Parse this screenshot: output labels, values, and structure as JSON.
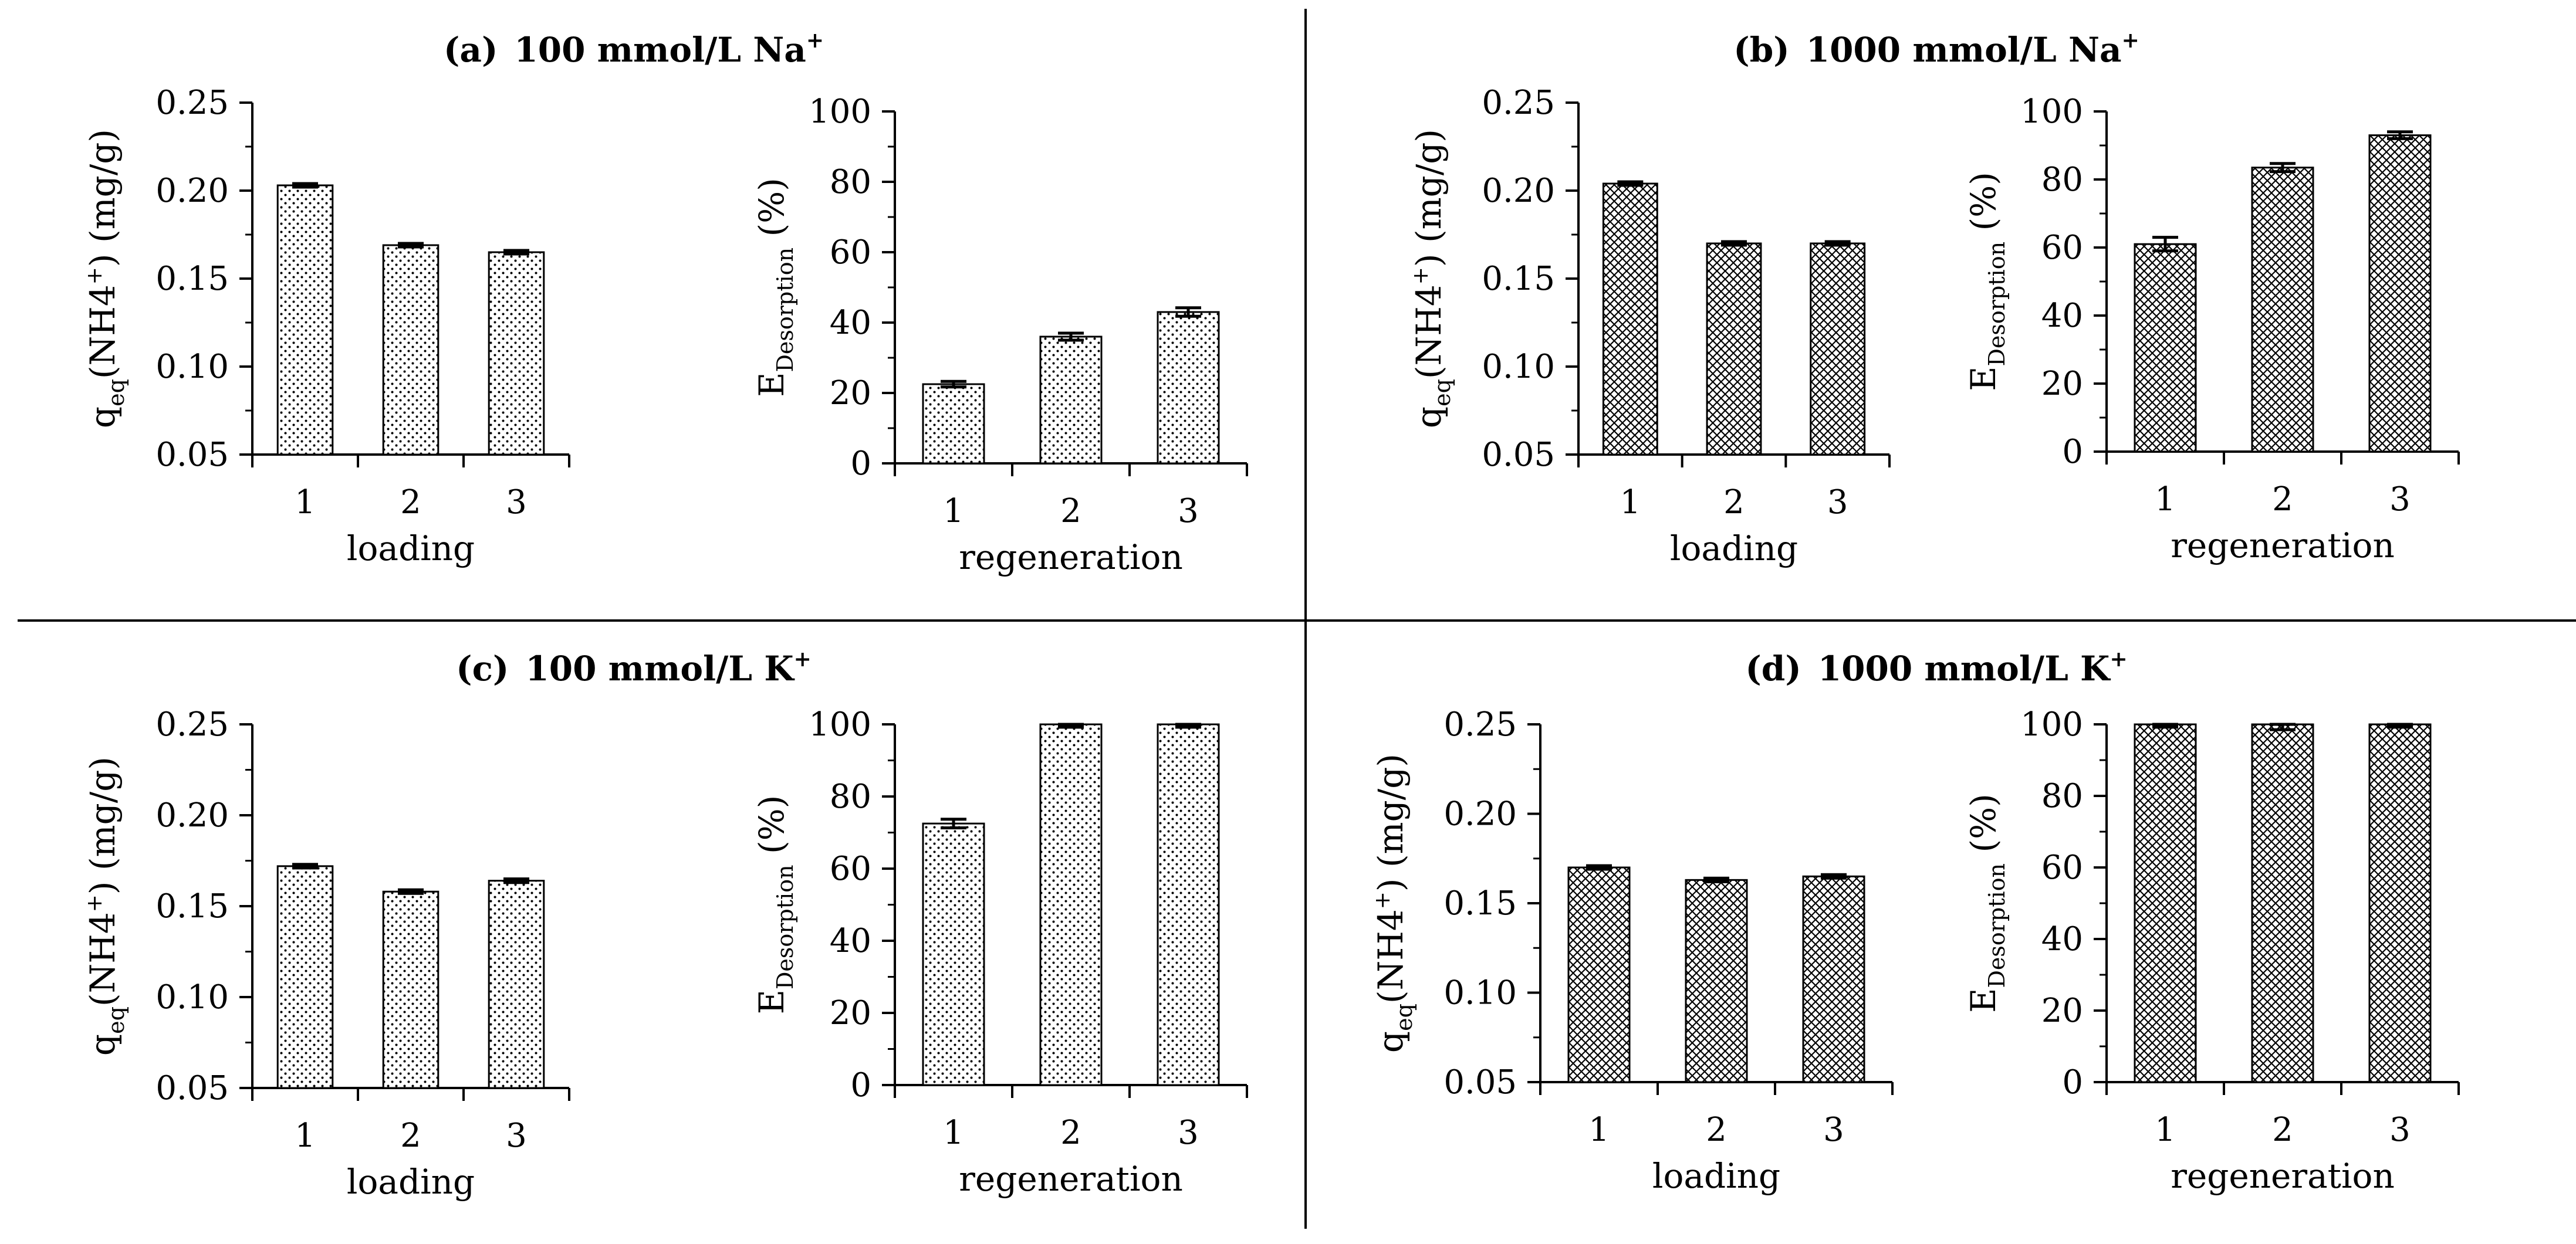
{
  "panels": [
    {
      "id": "a",
      "title": {
        "prefix": "(a)",
        "text": "100 mmol/L Na",
        "sup": "+"
      },
      "pattern": "dots",
      "charts": [
        {
          "id": "a-loading",
          "kind": "loading"
        },
        {
          "id": "a-regeneration",
          "kind": "regeneration"
        }
      ]
    },
    {
      "id": "b",
      "title": {
        "prefix": "(b)",
        "text": "1000 mmol/L Na",
        "sup": "+"
      },
      "pattern": "cross",
      "charts": [
        {
          "id": "b-loading",
          "kind": "loading"
        },
        {
          "id": "b-regeneration",
          "kind": "regeneration"
        }
      ]
    },
    {
      "id": "c",
      "title": {
        "prefix": "(c)",
        "text": "100 mmol/L K",
        "sup": "+"
      },
      "pattern": "dots",
      "charts": [
        {
          "id": "c-loading",
          "kind": "loading"
        },
        {
          "id": "c-regeneration",
          "kind": "regeneration"
        }
      ]
    },
    {
      "id": "d",
      "title": {
        "prefix": "(d)",
        "text": "1000 mmol/L K",
        "sup": "+"
      },
      "pattern": "cross",
      "charts": [
        {
          "id": "d-loading",
          "kind": "loading"
        },
        {
          "id": "d-regeneration",
          "kind": "regeneration"
        }
      ]
    }
  ],
  "axis_labels": {
    "loading_y": {
      "main": "q",
      "sub": "eq",
      "rest": "(NH4",
      "sup": "+",
      "tail": ") (mg/g)"
    },
    "regeneration_y": {
      "main": "E",
      "sub": "Desorption",
      "rest": " (%)"
    },
    "loading_x": "loading",
    "regeneration_x": "regeneration"
  },
  "colors": {
    "bar_fill": "#ffffff",
    "pattern_ink": "#000000",
    "axis": "#000000",
    "divider": "#000000"
  },
  "chart_data": [
    {
      "id": "a-loading",
      "type": "bar",
      "title": "(a) 100 mmol/L Na+",
      "categories": [
        "1",
        "2",
        "3"
      ],
      "values": [
        0.203,
        0.169,
        0.165
      ],
      "errors": [
        0.001,
        0.001,
        0.001
      ],
      "xlabel": "loading",
      "ylabel": "qeq(NH4+) (mg/g)",
      "ylim": [
        0.05,
        0.25
      ],
      "yticks": [
        "0.05",
        "0.10",
        "0.15",
        "0.20",
        "0.25"
      ]
    },
    {
      "id": "a-regeneration",
      "type": "bar",
      "title": "(a) 100 mmol/L Na+",
      "categories": [
        "1",
        "2",
        "3"
      ],
      "values": [
        22.5,
        36,
        43
      ],
      "errors": [
        0.8,
        1,
        1.2
      ],
      "xlabel": "regeneration",
      "ylabel": "EDesorption (%)",
      "ylim": [
        0,
        100
      ],
      "yticks": [
        "0",
        "20",
        "40",
        "60",
        "80",
        "100"
      ]
    },
    {
      "id": "b-loading",
      "type": "bar",
      "title": "(b) 1000 mmol/L Na+",
      "categories": [
        "1",
        "2",
        "3"
      ],
      "values": [
        0.204,
        0.17,
        0.17
      ],
      "errors": [
        0.001,
        0.001,
        0.001
      ],
      "xlabel": "loading",
      "ylabel": "qeq(NH4+) (mg/g)",
      "ylim": [
        0.05,
        0.25
      ],
      "yticks": [
        "0.05",
        "0.10",
        "0.15",
        "0.20",
        "0.25"
      ]
    },
    {
      "id": "b-regeneration",
      "type": "bar",
      "title": "(b) 1000 mmol/L Na+",
      "categories": [
        "1",
        "2",
        "3"
      ],
      "values": [
        61,
        83.5,
        93
      ],
      "errors": [
        2,
        1.2,
        1
      ],
      "xlabel": "regeneration",
      "ylabel": "EDesorption (%)",
      "ylim": [
        0,
        100
      ],
      "yticks": [
        "0",
        "20",
        "40",
        "60",
        "80",
        "100"
      ]
    },
    {
      "id": "c-loading",
      "type": "bar",
      "title": "(c) 100 mmol/L K+",
      "categories": [
        "1",
        "2",
        "3"
      ],
      "values": [
        0.172,
        0.158,
        0.164
      ],
      "errors": [
        0.001,
        0.001,
        0.001
      ],
      "xlabel": "loading",
      "ylabel": "qeq(NH4+) (mg/g)",
      "ylim": [
        0.05,
        0.25
      ],
      "yticks": [
        "0.05",
        "0.10",
        "0.15",
        "0.20",
        "0.25"
      ]
    },
    {
      "id": "c-regeneration",
      "type": "bar",
      "title": "(c) 100 mmol/L K+",
      "categories": [
        "1",
        "2",
        "3"
      ],
      "values": [
        72.5,
        100,
        100
      ],
      "errors": [
        1.2,
        0.8,
        0.8
      ],
      "xlabel": "regeneration",
      "ylabel": "EDesorption (%)",
      "ylim": [
        0,
        100
      ],
      "yticks": [
        "0",
        "20",
        "40",
        "60",
        "80",
        "100"
      ]
    },
    {
      "id": "d-loading",
      "type": "bar",
      "title": "(d) 1000 mmol/L K+",
      "categories": [
        "1",
        "2",
        "3"
      ],
      "values": [
        0.17,
        0.163,
        0.165
      ],
      "errors": [
        0.001,
        0.001,
        0.001
      ],
      "xlabel": "loading",
      "ylabel": "qeq(NH4+) (mg/g)",
      "ylim": [
        0.05,
        0.25
      ],
      "yticks": [
        "0.05",
        "0.10",
        "0.15",
        "0.20",
        "0.25"
      ]
    },
    {
      "id": "d-regeneration",
      "type": "bar",
      "title": "(d) 1000 mmol/L K+",
      "categories": [
        "1",
        "2",
        "3"
      ],
      "values": [
        100,
        100,
        100
      ],
      "errors": [
        0.8,
        1.5,
        0.8
      ],
      "xlabel": "regeneration",
      "ylabel": "EDesorption (%)",
      "ylim": [
        0,
        100
      ],
      "yticks": [
        "0",
        "20",
        "40",
        "60",
        "80",
        "100"
      ]
    }
  ]
}
